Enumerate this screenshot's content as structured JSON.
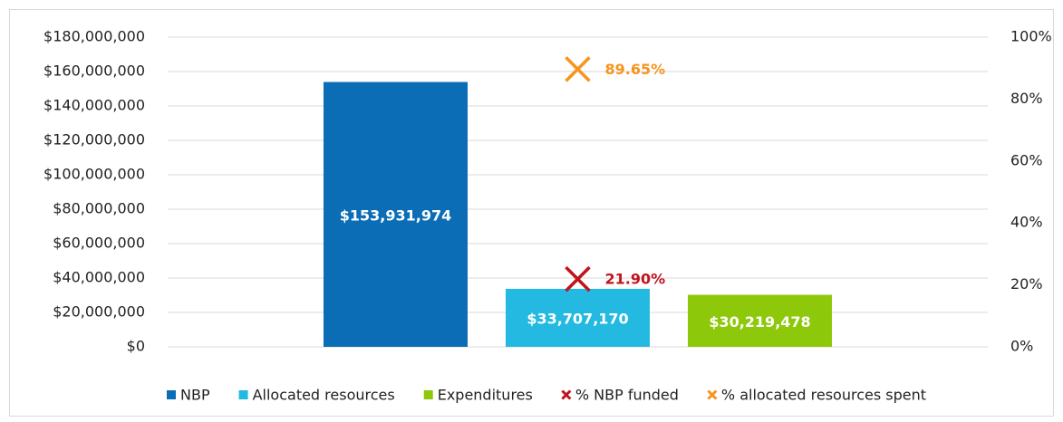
{
  "chart_data": {
    "type": "bar",
    "categories": [
      null
    ],
    "series": [
      {
        "name": "NBP",
        "color": "#0b6db5",
        "values": [
          153931974
        ],
        "value_labels": [
          "$153,931,974"
        ]
      },
      {
        "name": "Allocated resources",
        "color": "#23b9e0",
        "values": [
          33707170
        ],
        "value_labels": [
          "$33,707,170"
        ]
      },
      {
        "name": "Expenditures",
        "color": "#8dc80a",
        "values": [
          30219478
        ],
        "value_labels": [
          "$30,219,478"
        ]
      },
      {
        "name": "% NBP funded",
        "color": "#c0141c",
        "axis": "y2",
        "values": [
          21.9
        ],
        "value_labels": [
          "21.90%"
        ]
      },
      {
        "name": "% allocated resources spent",
        "color": "#f7941d",
        "axis": "y2",
        "values": [
          89.65
        ],
        "value_labels": [
          "89.65%"
        ]
      }
    ],
    "ylim": [
      0,
      180000000
    ],
    "yticks": [
      {
        "value": 0,
        "label": "$0"
      },
      {
        "value": 20000000,
        "label": "$20,000,000"
      },
      {
        "value": 40000000,
        "label": "$40,000,000"
      },
      {
        "value": 60000000,
        "label": "$60,000,000"
      },
      {
        "value": 80000000,
        "label": "$80,000,000"
      },
      {
        "value": 100000000,
        "label": "$100,000,000"
      },
      {
        "value": 120000000,
        "label": "$120,000,000"
      },
      {
        "value": 140000000,
        "label": "$140,000,000"
      },
      {
        "value": 160000000,
        "label": "$160,000,000"
      },
      {
        "value": 180000000,
        "label": "$180,000,000"
      }
    ],
    "y2lim": [
      0,
      100
    ],
    "y2ticks": [
      {
        "value": 0,
        "label": "0%"
      },
      {
        "value": 20,
        "label": "20%"
      },
      {
        "value": 40,
        "label": "40%"
      },
      {
        "value": 60,
        "label": "60%"
      },
      {
        "value": 80,
        "label": "80%"
      },
      {
        "value": 100,
        "label": "100%"
      }
    ],
    "grid": true,
    "legend": "bottom"
  }
}
